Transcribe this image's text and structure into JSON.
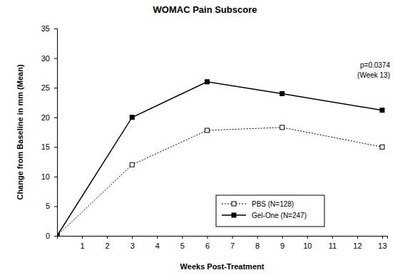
{
  "chart_data": {
    "type": "line",
    "title": "WOMAC Pain Subscore",
    "x_label": "Weeks Post-Treatment",
    "y_label": "Change from Baseline in mm (Mean)",
    "x": [
      0,
      3,
      6,
      9,
      13
    ],
    "xlim": [
      0,
      13.2
    ],
    "xticks": [
      1,
      2,
      3,
      4,
      5,
      6,
      7,
      8,
      9,
      10,
      11,
      12,
      13
    ],
    "ylim": [
      0,
      35
    ],
    "yticks": [
      0,
      5,
      10,
      15,
      20,
      25,
      30,
      35
    ],
    "grid": false,
    "legend": "lower right",
    "annotations": [
      "p=0.0374",
      "(Week 13)"
    ],
    "series": [
      {
        "name": "PBS (N=128)",
        "color": "#000000",
        "line_style": "dotted",
        "marker": "square-open",
        "values": [
          0,
          12,
          17.8,
          18.3,
          15
        ]
      },
      {
        "name": "Gel-One (N=247)",
        "color": "#000000",
        "line_style": "solid",
        "marker": "square",
        "values": [
          0,
          20,
          26,
          24,
          21.2
        ]
      }
    ]
  }
}
